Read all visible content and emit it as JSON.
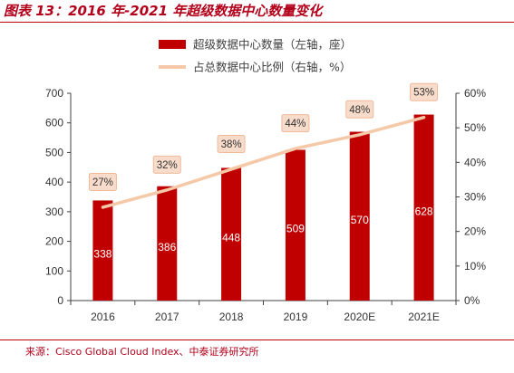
{
  "title": "图表 13：2016 年-2021 年超级数据中心数量变化",
  "source": "来源：Cisco Global Cloud Index、中泰证券研究所",
  "colors": {
    "bar": "#c00000",
    "line": "#f5c8a8",
    "pct_box_border": "#f0b99a",
    "pct_box_fill": "#f8dccb"
  },
  "chart_data": {
    "type": "bar",
    "categories": [
      "2016",
      "2017",
      "2018",
      "2019",
      "2020E",
      "2021E"
    ],
    "series": [
      {
        "name": "超级数据中心数量（左轴，座）",
        "type": "bar",
        "axis": "left",
        "values": [
          338,
          386,
          448,
          509,
          570,
          628
        ],
        "labels": [
          "338",
          "386",
          "448",
          "509",
          "570",
          "628"
        ]
      },
      {
        "name": "占总数据中心比例（右轴，%）",
        "type": "line",
        "axis": "right",
        "values": [
          27,
          32,
          38,
          44,
          48,
          53
        ],
        "labels": [
          "27%",
          "32%",
          "38%",
          "44%",
          "48%",
          "53%"
        ]
      }
    ],
    "y_left": {
      "min": 0,
      "max": 700,
      "ticks": [
        "0",
        "100",
        "200",
        "300",
        "400",
        "500",
        "600",
        "700"
      ]
    },
    "y_right": {
      "min": 0,
      "max": 60,
      "ticks": [
        "0%",
        "10%",
        "20%",
        "30%",
        "40%",
        "50%",
        "60%"
      ]
    },
    "legend_position": "top-center",
    "grid": false
  }
}
